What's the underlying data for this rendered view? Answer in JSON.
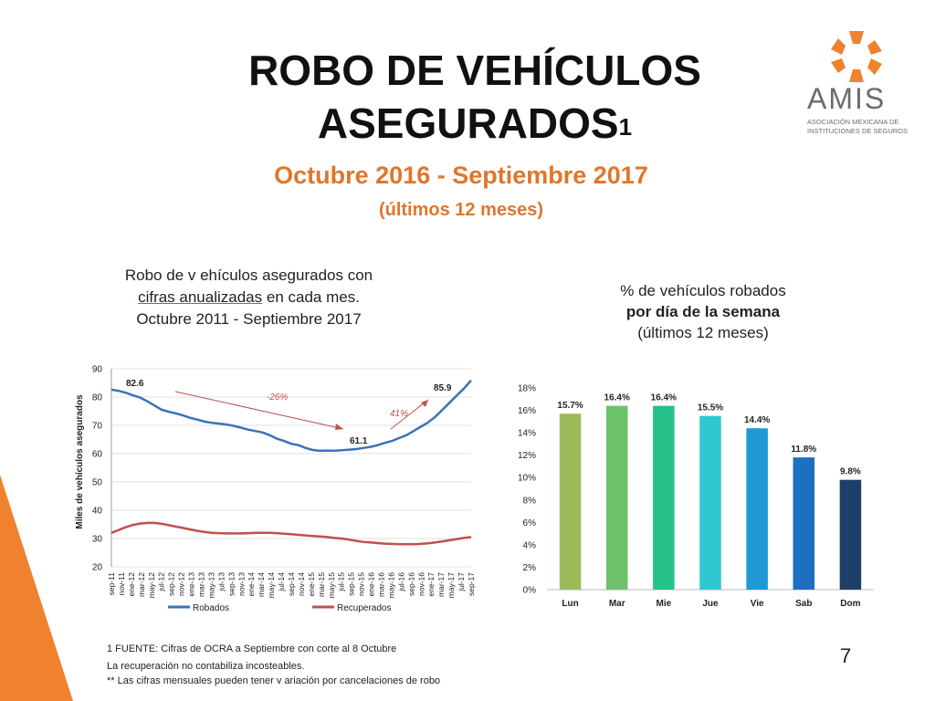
{
  "title_line1": "ROBO DE VEHÍCULOS",
  "title_line2": "ASEGURADOS",
  "title_sup": "1",
  "subtitle": "Octubre  2016 - Septiembre  2017",
  "subtitle2": "(últimos 12 meses)",
  "logo": {
    "name": "AMIS",
    "line1": "ASOCIACIÓN MEXICANA DE",
    "line2": "INSTITUCIONES DE SEGUROS",
    "color": "#f0822f"
  },
  "left_caption": {
    "line1": "Robo de v ehículos asegurados con",
    "line2_u": "cifras anualizadas",
    "line2_rest": " en cada mes.",
    "line3": "Octubre  2011 - Septiembre  2017"
  },
  "right_caption": {
    "line1": "% de vehículos robados",
    "line2": "por día de la semana",
    "line3": "(últimos 12 meses)"
  },
  "chart_data": [
    {
      "type": "line",
      "ylabel": "Miles de vehículos asegurados",
      "ylim": [
        20,
        90
      ],
      "yticks": [
        20,
        30,
        40,
        50,
        60,
        70,
        80,
        90
      ],
      "xtick_labels": [
        "sep-11",
        "nov-11",
        "ene-12",
        "mar-12",
        "may-12",
        "jul-12",
        "sep-12",
        "nov-12",
        "ene-13",
        "mar-13",
        "may-13",
        "jul-13",
        "sep-13",
        "nov-13",
        "ene-14",
        "mar-14",
        "may-14",
        "jul-14",
        "sep-14",
        "nov-14",
        "ene-15",
        "mar-15",
        "may-15",
        "jul-15",
        "sep-15",
        "nov-15",
        "ene-16",
        "mar-16",
        "may-16",
        "jul-16",
        "sep-16",
        "nov-16",
        "ene-17",
        "mar-17",
        "may-17",
        "jul-17",
        "sep-17"
      ],
      "legend_position": "bottom",
      "series": [
        {
          "name": "Robados",
          "color": "#3a73b9",
          "values": [
            82.6,
            82.2,
            81.5,
            80.6,
            79.8,
            78.5,
            77.0,
            75.5,
            74.8,
            74.2,
            73.5,
            72.6,
            72.0,
            71.3,
            70.9,
            70.6,
            70.3,
            69.8,
            69.2,
            68.5,
            68.0,
            67.5,
            66.5,
            65.3,
            64.5,
            63.5,
            63.0,
            62.0,
            61.3,
            61.0,
            61.1,
            61.0,
            61.2,
            61.4,
            61.6,
            62.0,
            62.4,
            63.0,
            63.8,
            64.5,
            65.5,
            66.5,
            68.0,
            69.5,
            71.0,
            73.0,
            75.5,
            78.0,
            80.5,
            83.0,
            85.9
          ]
        },
        {
          "name": "Recuperados",
          "color": "#c0504d",
          "values": [
            32.0,
            33.0,
            34.0,
            34.8,
            35.3,
            35.5,
            35.5,
            35.2,
            34.7,
            34.2,
            33.7,
            33.2,
            32.7,
            32.3,
            32.0,
            31.9,
            31.8,
            31.8,
            31.8,
            31.9,
            32.0,
            32.0,
            32.0,
            31.9,
            31.7,
            31.5,
            31.3,
            31.1,
            30.9,
            30.7,
            30.5,
            30.2,
            30.0,
            29.6,
            29.2,
            28.8,
            28.6,
            28.4,
            28.2,
            28.1,
            28.0,
            28.0,
            28.0,
            28.1,
            28.3,
            28.6,
            29.0,
            29.4,
            29.8,
            30.2,
            30.5
          ]
        }
      ],
      "data_labels": [
        {
          "text": "82.6"
        },
        {
          "text": "61.1"
        },
        {
          "text": "85.9"
        }
      ],
      "annotations": [
        {
          "text": "-26%"
        },
        {
          "text": "41%"
        }
      ]
    },
    {
      "type": "bar",
      "categories": [
        "Lun",
        "Mar",
        "Mie",
        "Jue",
        "Vie",
        "Sab",
        "Dom"
      ],
      "values": [
        15.7,
        16.4,
        16.4,
        15.5,
        14.4,
        11.8,
        9.8
      ],
      "value_labels": [
        "15.7%",
        "16.4%",
        "16.4%",
        "15.5%",
        "14.4%",
        "11.8%",
        "9.8%"
      ],
      "colors": [
        "#9bbb59",
        "#6cc26a",
        "#27c18a",
        "#2fc7d2",
        "#1f9ad6",
        "#1d6fc0",
        "#1f3f6b"
      ],
      "ylim": [
        0,
        18
      ],
      "ytick_labels": [
        "0%",
        "2%",
        "4%",
        "6%",
        "8%",
        "10%",
        "12%",
        "14%",
        "16%",
        "18%"
      ]
    }
  ],
  "footnotes": {
    "f1": "1 FUENTE: Cifras de OCRA a Septiembre con corte al 8 Octubre",
    "f2": " La recuperación no contabiliza incosteables.",
    "f3": "** Las cifras mensuales pueden tener v ariación por cancelaciones de robo"
  },
  "page_number": "7",
  "accent_color": "#f0822f"
}
